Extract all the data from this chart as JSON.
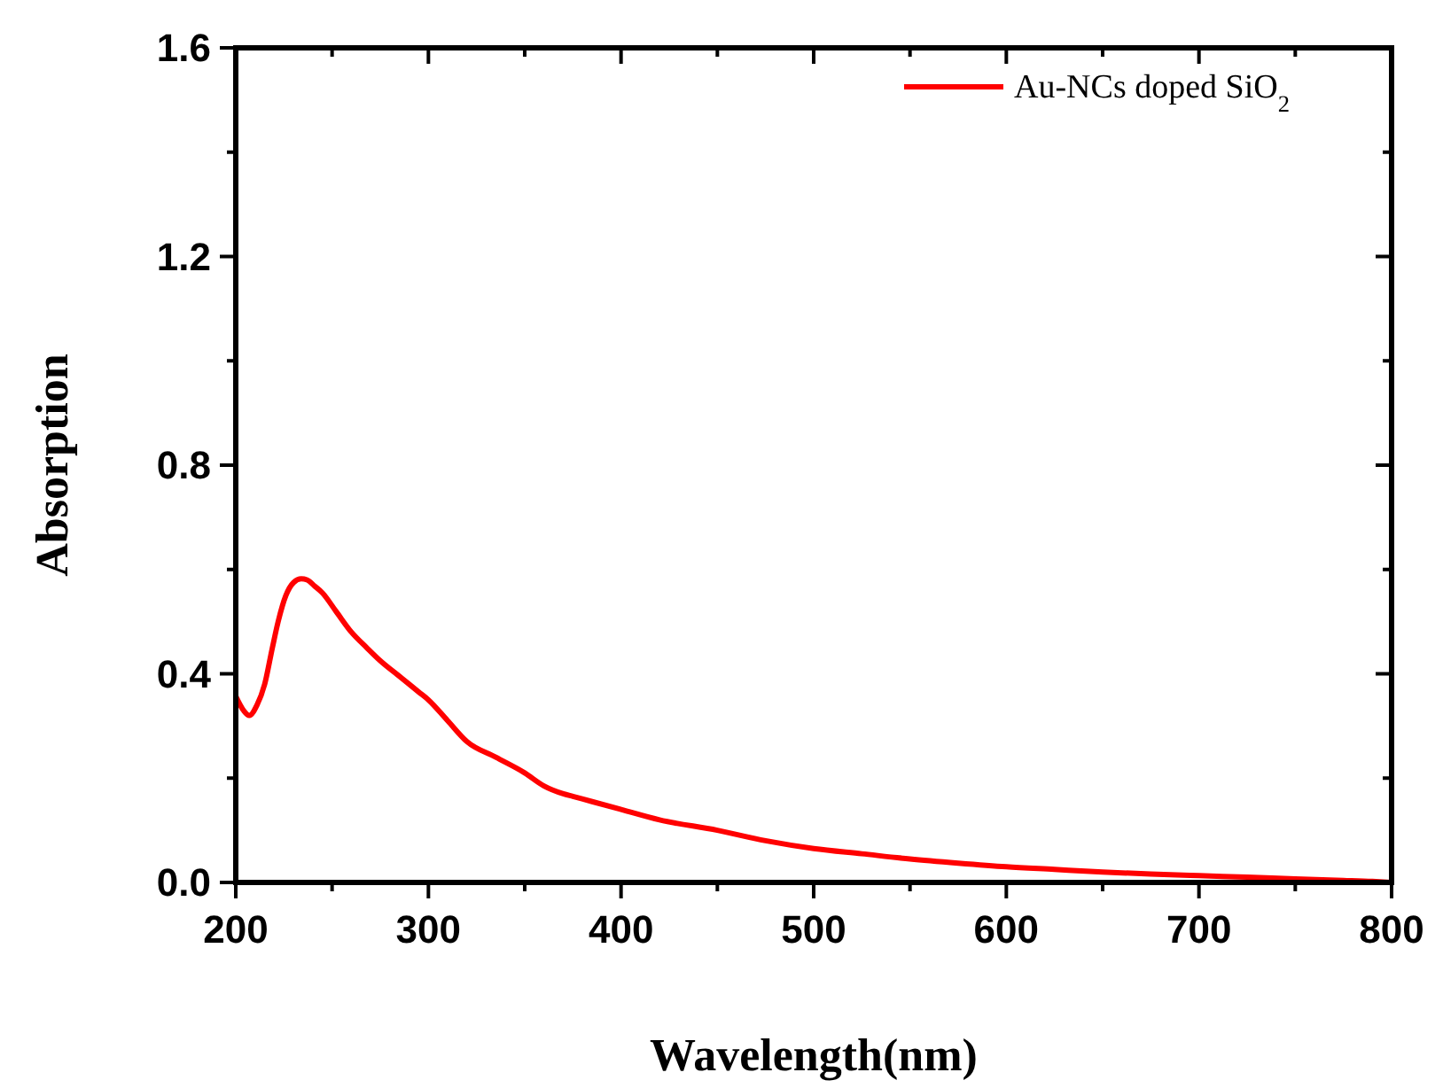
{
  "chart_data": {
    "type": "line",
    "xlabel": "Wavelength(nm)",
    "ylabel": "Absorption",
    "xlim": [
      200,
      800
    ],
    "ylim": [
      0,
      1.6
    ],
    "xticks": [
      200,
      {
        "value": 250,
        "label": null
      },
      300,
      {
        "value": 350,
        "label": null
      },
      400,
      {
        "value": 450,
        "label": null
      },
      500,
      {
        "value": 550,
        "label": null
      },
      600,
      {
        "value": 650,
        "label": null
      },
      700,
      {
        "value": 750,
        "label": null
      },
      800
    ],
    "yticks": [
      {
        "value": 0,
        "label": "0.0"
      },
      {
        "value": 0.2,
        "label": null
      },
      0.4,
      {
        "value": 0.6,
        "label": null
      },
      0.8,
      {
        "value": 1.0,
        "label": null
      },
      1.2,
      {
        "value": 1.4,
        "label": null
      },
      1.6
    ],
    "legend": "top right",
    "marker": "none",
    "line_style": "solid",
    "series": [
      {
        "name": "Au-NCs doped SiO$_{2}$",
        "color": "#ff0000",
        "x": [
          200,
          204,
          207,
          211,
          215,
          219,
          222,
          226,
          230,
          234,
          237,
          241,
          245,
          252,
          260,
          268,
          275,
          285,
          295,
          300,
          310,
          320,
          335,
          350,
          360,
          370,
          375,
          385,
          400,
          420,
          450,
          475,
          500,
          525,
          550,
          575,
          600,
          625,
          650,
          675,
          700,
          725,
          750,
          775,
          790,
          800
        ],
        "values": [
          0.357,
          0.33,
          0.32,
          0.34,
          0.38,
          0.45,
          0.5,
          0.55,
          0.575,
          0.582,
          0.58,
          0.568,
          0.555,
          0.52,
          0.48,
          0.45,
          0.425,
          0.395,
          0.365,
          0.35,
          0.31,
          0.27,
          0.24,
          0.21,
          0.185,
          0.17,
          0.165,
          0.155,
          0.14,
          0.12,
          0.1,
          0.08,
          0.065,
          0.055,
          0.045,
          0.037,
          0.03,
          0.025,
          0.02,
          0.016,
          0.013,
          0.01,
          0.007,
          0.004,
          0.002,
          0.0
        ]
      }
    ]
  }
}
